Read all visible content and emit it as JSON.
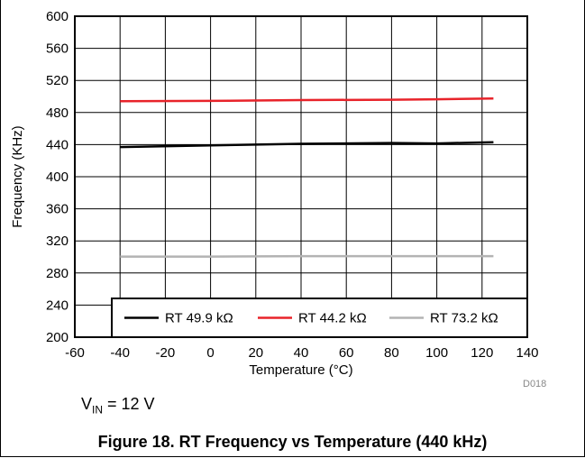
{
  "chart_data": {
    "type": "line",
    "title": "",
    "xlabel": "Temperature (°C)",
    "ylabel": "Frequency (KHz)",
    "xlim": [
      -60,
      140
    ],
    "ylim": [
      200,
      600
    ],
    "x_ticks": [
      "-60",
      "-40",
      "-20",
      "0",
      "20",
      "40",
      "60",
      "80",
      "100",
      "120",
      "140"
    ],
    "y_ticks": [
      "200",
      "240",
      "280",
      "320",
      "360",
      "400",
      "440",
      "480",
      "520",
      "560",
      "600"
    ],
    "grid": true,
    "legend_position": "bottom",
    "series": [
      {
        "name": "RT 49.9 kΩ",
        "color": "#000000",
        "x": [
          -40,
          0,
          40,
          80,
          100,
          125
        ],
        "y": [
          437,
          439,
          441,
          442,
          441.5,
          443
        ]
      },
      {
        "name": "RT 44.2 kΩ",
        "color": "#e8232a",
        "x": [
          -40,
          0,
          40,
          80,
          100,
          125
        ],
        "y": [
          494,
          494.5,
          495.5,
          496,
          496.5,
          497.5
        ]
      },
      {
        "name": "RT 73.2 kΩ",
        "color": "#b3b3b3",
        "x": [
          -40,
          0,
          40,
          80,
          100,
          125
        ],
        "y": [
          300.5,
          300.5,
          301,
          301,
          301,
          301
        ]
      }
    ]
  },
  "doc_id": "D018",
  "note": {
    "prefix": "V",
    "subscript": "IN",
    "suffix": " = 12 V"
  },
  "caption": "Figure 18. RT Frequency vs Temperature (440 kHz)"
}
